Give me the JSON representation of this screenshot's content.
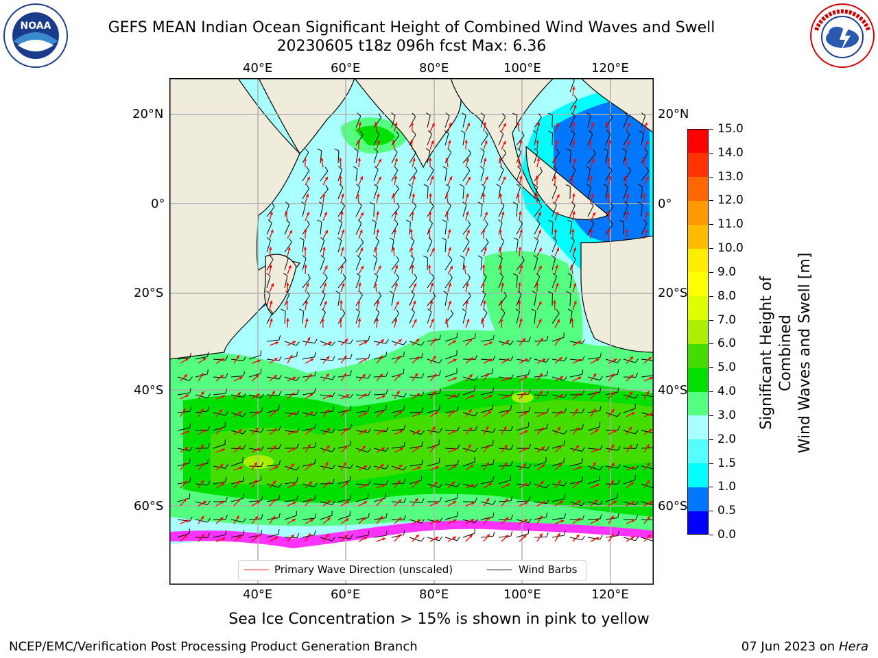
{
  "title": {
    "line1": "GEFS MEAN Indian Ocean Significant Height of Combined Wind Waves and Swell",
    "line2": "20230605 t18z 096h fcst   Max: 6.36"
  },
  "map": {
    "top_lon_labels": [
      "40°E",
      "60°E",
      "80°E",
      "100°E",
      "120°E"
    ],
    "bottom_lon_labels": [
      "40°E",
      "60°E",
      "80°E",
      "100°E",
      "120°E"
    ],
    "left_lat_labels": [
      "20°N",
      "0°",
      "20°S",
      "40°S",
      "60°S"
    ],
    "right_lat_labels": [
      "20°N",
      "0°",
      "20°S",
      "40°S",
      "60°S"
    ],
    "colors": {
      "land": "#efecdc",
      "ocean_low": "#aaffff",
      "sea_ice": "#ff33ff"
    }
  },
  "legend": {
    "wave_label": "Primary Wave Direction (unscaled)",
    "barb_label": "Wind Barbs",
    "wave_color": "#ff0000",
    "barb_color": "#000000"
  },
  "colorbar": {
    "label_line1": "Significant Height of Combined",
    "label_line2": "Wind Waves and Swell [m]",
    "ticks": [
      "0.0",
      "0.5",
      "1.0",
      "1.5",
      "2.0",
      "3.0",
      "4.0",
      "5.0",
      "6.0",
      "7.0",
      "8.0",
      "9.0",
      "10.0",
      "11.0",
      "12.0",
      "13.0",
      "14.0",
      "15.0"
    ],
    "colors": [
      "#0000ff",
      "#0077ff",
      "#00ffff",
      "#55ffff",
      "#aaffff",
      "#55ff80",
      "#00e000",
      "#44dd00",
      "#aaee00",
      "#ddff00",
      "#ffff00",
      "#ffee00",
      "#ffbb00",
      "#ff9900",
      "#ff6600",
      "#ff3300",
      "#ff0000"
    ]
  },
  "caption": "Sea Ice Concentration > 15% is shown in pink to yellow",
  "footer": {
    "left": "NCEP/EMC/Verification Post Processing Product Generation Branch",
    "date": "07 Jun 2023 on",
    "host": "Hera"
  },
  "logos": {
    "noaa": "NOAA",
    "nws": "NATIONAL WEATHER SERVICE"
  }
}
